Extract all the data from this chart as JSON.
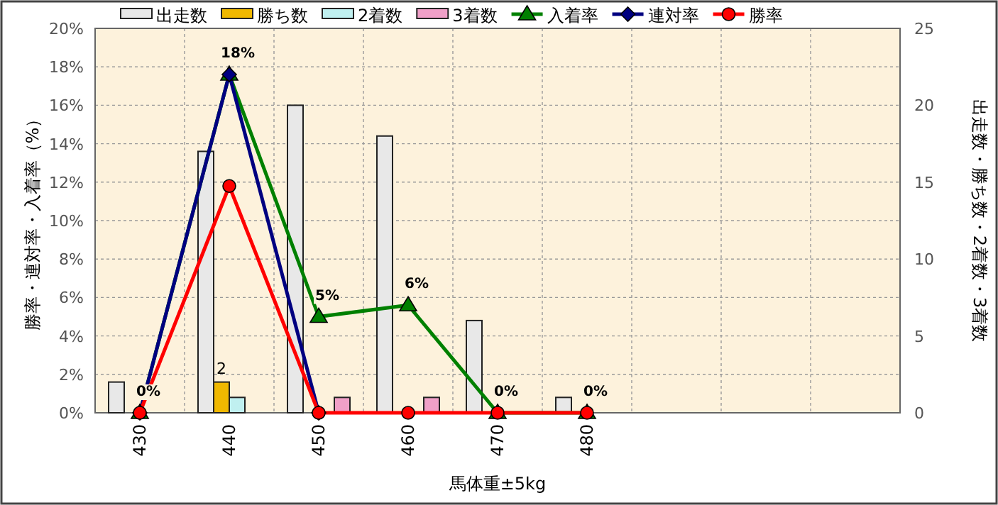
{
  "chart_data": {
    "type": "bar",
    "categories": [
      "430",
      "440",
      "450",
      "460",
      "470",
      "480",
      null,
      null,
      null
    ],
    "xlabel": "馬体重±5kg",
    "ylabel": "勝率・連対率・入着率（%）",
    "y2label": "出走数・勝ち数・2着数・3着数",
    "ylim": [
      0,
      20
    ],
    "yticks": [
      {
        "value": 0,
        "label": "0%"
      },
      {
        "value": 2,
        "label": "2%"
      },
      {
        "value": 4,
        "label": "4%"
      },
      {
        "value": 6,
        "label": "6%"
      },
      {
        "value": 8,
        "label": "8%"
      },
      {
        "value": 10,
        "label": "10%"
      },
      {
        "value": 12,
        "label": "12%"
      },
      {
        "value": 14,
        "label": "14%"
      },
      {
        "value": 16,
        "label": "16%"
      },
      {
        "value": 18,
        "label": "18%"
      },
      {
        "value": 20,
        "label": "20%"
      }
    ],
    "y2lim": [
      0,
      25
    ],
    "y2ticks": [
      0,
      5,
      10,
      15,
      20,
      25
    ],
    "grid": true,
    "legend": "top",
    "series": [
      {
        "name": "出走数",
        "axis": "y2",
        "color": "#e8e8e8",
        "values": [
          2,
          17,
          20,
          18,
          6,
          1,
          null,
          null,
          null
        ]
      },
      {
        "name": "勝ち数",
        "axis": "y2",
        "color": "#f0b800",
        "values": [
          0,
          2,
          0,
          0,
          0,
          0,
          null,
          null,
          null
        ],
        "value_labels": [
          null,
          "2",
          null,
          null,
          null,
          null,
          null,
          null,
          null
        ]
      },
      {
        "name": "2着数",
        "axis": "y2",
        "color": "#c0f0f0",
        "values": [
          0,
          1,
          0,
          0,
          0,
          0,
          null,
          null,
          null
        ]
      },
      {
        "name": "3着数",
        "axis": "y2",
        "color": "#f0a0c8",
        "values": [
          0,
          0,
          1,
          1,
          0,
          0,
          null,
          null,
          null
        ]
      },
      {
        "name": "入着率",
        "type": "line",
        "marker": "triangle",
        "color": "#008000",
        "values": [
          0,
          17.6,
          5.0,
          5.6,
          0,
          0,
          null,
          null,
          null
        ],
        "value_labels": [
          "0%",
          "18%",
          "5%",
          "6%",
          "0%",
          "0%",
          null,
          null,
          null
        ]
      },
      {
        "name": "連対率",
        "type": "line",
        "marker": "diamond",
        "color": "#000080",
        "values": [
          0,
          17.6,
          0,
          null,
          null,
          null,
          null,
          null,
          null
        ]
      },
      {
        "name": "勝率",
        "type": "line",
        "marker": "circle",
        "color": "#ff0000",
        "values": [
          0,
          11.8,
          0,
          0,
          0,
          0,
          null,
          null,
          null
        ]
      }
    ]
  }
}
